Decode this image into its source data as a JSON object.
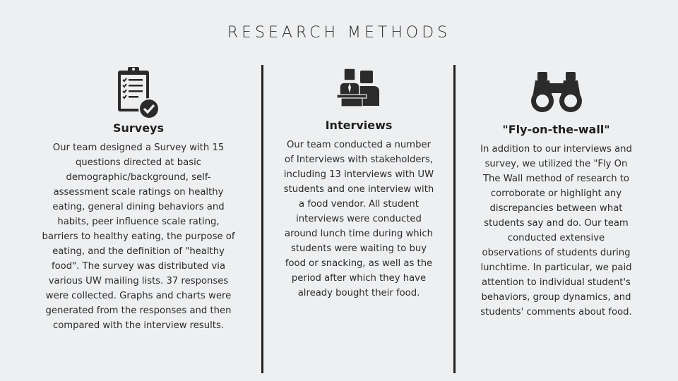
{
  "title": "RESEARCH METHODS",
  "columns": [
    {
      "icon": "clipboard-check-icon",
      "heading": "Surveys",
      "body": "Our team designed a Survey with 15 questions directed at basic demographic/background, self-assessment scale ratings on healthy eating, general dining behaviors and habits, peer influence scale rating, barriers to healthy eating, the purpose of eating, and the definition of \"healthy food\". The survey was distributed via various UW mailing lists. 37 responses were collected. Graphs and charts were generated from the responses and then compared with the interview results."
    },
    {
      "icon": "interview-people-icon",
      "heading": "Interviews",
      "body": "Our team conducted a number of Interviews with stakeholders, including 13 interviews with UW students and one interview with a food vendor. All student interviews were conducted around lunch time during which students were waiting to buy food or snacking, as well as the period after which they have already bought their food."
    },
    {
      "icon": "binoculars-icon",
      "heading": "\"Fly-on-the-wall\"",
      "body": "In addition to our interviews and survey, we utilized the \"Fly On The Wall method of research to corroborate or highlight any discrepancies between what students say and do. Our team conducted extensive observations of students during lunchtime. In particular, we paid attention to individual student's behaviors, group dynamics, and students' comments about food."
    }
  ]
}
